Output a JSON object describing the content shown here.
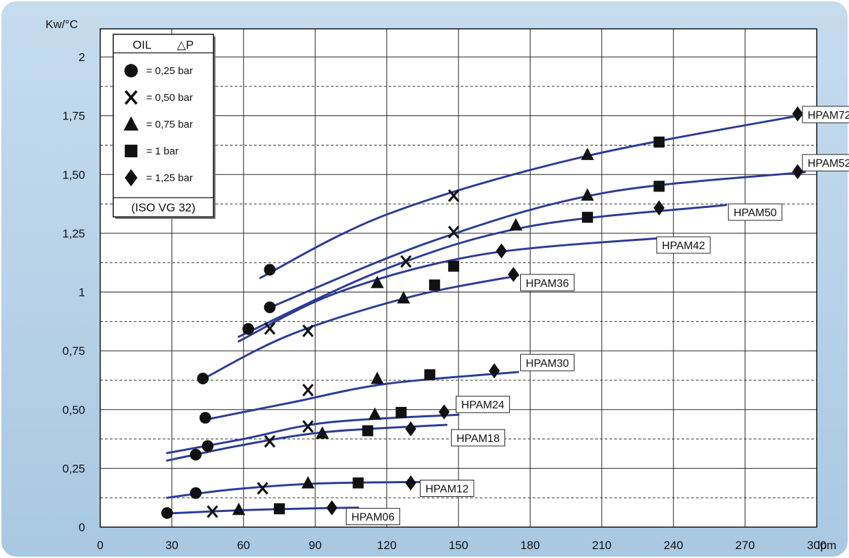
{
  "chart_data": {
    "type": "scatter",
    "ylabel": "Kw/°C",
    "xlabel": "lpm",
    "xlim": [
      0,
      300
    ],
    "ylim": [
      0,
      2
    ],
    "x_ticks": [
      "0",
      "30",
      "60",
      "90",
      "120",
      "150",
      "180",
      "210",
      "240",
      "270",
      "300"
    ],
    "y_ticks": [
      {
        "value": 0,
        "label": "0"
      },
      {
        "value": 0.25,
        "label": "0,25"
      },
      {
        "value": 0.5,
        "label": "0,50"
      },
      {
        "value": 0.75,
        "label": "0,75"
      },
      {
        "value": 1,
        "label": "1"
      },
      {
        "value": 1.25,
        "label": "1,25"
      },
      {
        "value": 1.5,
        "label": "1,50"
      },
      {
        "value": 1.75,
        "label": "1,75"
      },
      {
        "value": 2,
        "label": "2"
      }
    ],
    "grid": true,
    "legend": {
      "title_oil": "OIL",
      "title_dp": "△P",
      "entries": [
        {
          "marker": "circle",
          "label": "= 0,25 bar"
        },
        {
          "marker": "x",
          "label": "= 0,50 bar"
        },
        {
          "marker": "triangle",
          "label": "= 0,75 bar"
        },
        {
          "marker": "square",
          "label": "= 1 bar"
        },
        {
          "marker": "diamond",
          "label": "= 1,25 bar"
        }
      ],
      "footer": "(ISO VG 32)",
      "position": "top-left"
    },
    "series": [
      {
        "name": "HPAM06",
        "curve": [
          [
            28,
            0.058
          ],
          [
            60,
            0.072
          ],
          [
            90,
            0.08
          ],
          [
            108,
            0.083
          ]
        ],
        "points": [
          {
            "m": "circle",
            "x": 28,
            "y": 0.06
          },
          {
            "m": "x",
            "x": 47,
            "y": 0.066
          },
          {
            "m": "triangle",
            "x": 58,
            "y": 0.075
          },
          {
            "m": "square",
            "x": 75,
            "y": 0.078
          },
          {
            "m": "diamond",
            "x": 97,
            "y": 0.082
          }
        ],
        "label_at": [
          103,
          0.045
        ]
      },
      {
        "name": "HPAM12",
        "curve": [
          [
            28,
            0.125
          ],
          [
            55,
            0.16
          ],
          [
            90,
            0.185
          ],
          [
            135,
            0.192
          ]
        ],
        "points": [
          {
            "m": "circle",
            "x": 40,
            "y": 0.145
          },
          {
            "m": "x",
            "x": 68,
            "y": 0.165
          },
          {
            "m": "triangle",
            "x": 87,
            "y": 0.188
          },
          {
            "m": "square",
            "x": 108,
            "y": 0.188
          },
          {
            "m": "diamond",
            "x": 130,
            "y": 0.188
          }
        ],
        "label_at": [
          134,
          0.165
        ]
      },
      {
        "name": "HPAM18",
        "curve": [
          [
            28,
            0.283
          ],
          [
            60,
            0.35
          ],
          [
            95,
            0.405
          ],
          [
            145,
            0.435
          ]
        ],
        "points": [
          {
            "m": "circle",
            "x": 45,
            "y": 0.345
          },
          {
            "m": "x",
            "x": 71,
            "y": 0.365
          },
          {
            "m": "triangle",
            "x": 93,
            "y": 0.4
          },
          {
            "m": "square",
            "x": 112,
            "y": 0.41
          },
          {
            "m": "diamond",
            "x": 130,
            "y": 0.418
          }
        ],
        "label_at": [
          147,
          0.38
        ]
      },
      {
        "name": "HPAM24",
        "curve": [
          [
            28,
            0.315
          ],
          [
            60,
            0.375
          ],
          [
            95,
            0.445
          ],
          [
            150,
            0.478
          ]
        ],
        "points": [
          {
            "m": "circle",
            "x": 40,
            "y": 0.308
          },
          {
            "m": "x",
            "x": 87,
            "y": 0.428
          },
          {
            "m": "triangle",
            "x": 115,
            "y": 0.48
          },
          {
            "m": "square",
            "x": 126,
            "y": 0.488
          },
          {
            "m": "diamond",
            "x": 144,
            "y": 0.49
          }
        ],
        "label_at": [
          149,
          0.522
        ]
      },
      {
        "name": "HPAM30",
        "curve": [
          [
            43,
            0.455
          ],
          [
            80,
            0.53
          ],
          [
            120,
            0.61
          ],
          [
            175,
            0.66
          ]
        ],
        "points": [
          {
            "m": "circle",
            "x": 44,
            "y": 0.465
          },
          {
            "m": "x",
            "x": 87,
            "y": 0.583
          },
          {
            "m": "triangle",
            "x": 116,
            "y": 0.632
          },
          {
            "m": "square",
            "x": 138,
            "y": 0.648
          },
          {
            "m": "diamond",
            "x": 165,
            "y": 0.665
          }
        ],
        "label_at": [
          176,
          0.7
        ]
      },
      {
        "name": "HPAM36",
        "curve": [
          [
            43,
            0.63
          ],
          [
            80,
            0.82
          ],
          [
            130,
            0.98
          ],
          [
            175,
            1.07
          ]
        ],
        "points": [
          {
            "m": "circle",
            "x": 43,
            "y": 0.632
          },
          {
            "m": "x",
            "x": 87,
            "y": 0.835
          },
          {
            "m": "triangle",
            "x": 127,
            "y": 0.975
          },
          {
            "m": "square",
            "x": 140,
            "y": 1.03
          },
          {
            "m": "diamond",
            "x": 173,
            "y": 1.075
          }
        ],
        "label_at": [
          176,
          1.04
        ]
      },
      {
        "name": "HPAM42",
        "curve": [
          [
            58,
            0.79
          ],
          [
            100,
            1.0
          ],
          [
            160,
            1.16
          ],
          [
            235,
            1.23
          ]
        ],
        "points": [
          {
            "m": "circle",
            "x": 62,
            "y": 0.843
          },
          {
            "m": "x",
            "x": 71,
            "y": 0.845
          },
          {
            "m": "x",
            "x": 128,
            "y": 1.13
          },
          {
            "m": "square",
            "x": 148,
            "y": 1.11
          },
          {
            "m": "diamond",
            "x": 168,
            "y": 1.175
          }
        ],
        "label_at": [
          233,
          1.2
        ]
      },
      {
        "name": "HPAM50",
        "curve": [
          [
            58,
            0.81
          ],
          [
            120,
            1.1
          ],
          [
            180,
            1.28
          ],
          [
            262,
            1.37
          ]
        ],
        "points": [
          {
            "m": "triangle",
            "x": 116,
            "y": 1.04
          },
          {
            "m": "triangle",
            "x": 174,
            "y": 1.285
          },
          {
            "m": "square",
            "x": 204,
            "y": 1.318
          },
          {
            "m": "diamond",
            "x": 234,
            "y": 1.358
          }
        ],
        "label_at": [
          263,
          1.34
        ]
      },
      {
        "name": "HPAM52",
        "curve": [
          [
            70,
            0.93
          ],
          [
            140,
            1.22
          ],
          [
            210,
            1.42
          ],
          [
            295,
            1.51
          ]
        ],
        "points": [
          {
            "m": "circle",
            "x": 71,
            "y": 0.935
          },
          {
            "m": "x",
            "x": 148,
            "y": 1.255
          },
          {
            "m": "triangle",
            "x": 204,
            "y": 1.412
          },
          {
            "m": "square",
            "x": 234,
            "y": 1.45
          },
          {
            "m": "diamond",
            "x": 292,
            "y": 1.512
          }
        ],
        "label_at": [
          294,
          1.55
        ]
      },
      {
        "name": "HPAM72",
        "curve": [
          [
            67,
            1.06
          ],
          [
            120,
            1.33
          ],
          [
            200,
            1.57
          ],
          [
            295,
            1.755
          ]
        ],
        "points": [
          {
            "m": "circle",
            "x": 71,
            "y": 1.095
          },
          {
            "m": "x",
            "x": 148,
            "y": 1.41
          },
          {
            "m": "triangle",
            "x": 204,
            "y": 1.585
          },
          {
            "m": "square",
            "x": 234,
            "y": 1.638
          },
          {
            "m": "diamond",
            "x": 292,
            "y": 1.758
          }
        ],
        "label_at": [
          294,
          1.755
        ]
      }
    ],
    "colors": {
      "curve": "#2b3c96",
      "panel": "#bcd6ea",
      "marker": "#111111"
    }
  }
}
